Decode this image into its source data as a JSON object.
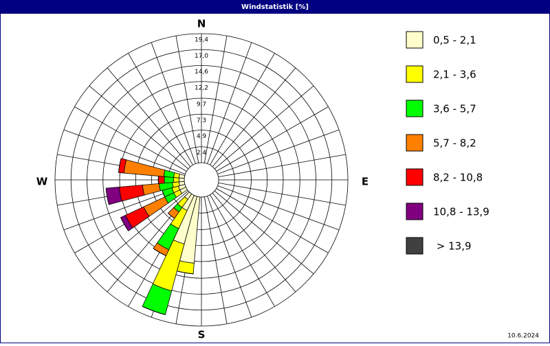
{
  "chart_data": {
    "type": "windrose",
    "title": "Windstatistik [%]",
    "date": "10.6.2024",
    "compass_labels": {
      "north": "N",
      "east": "E",
      "south": "S",
      "west": "W"
    },
    "x": [
      190,
      200,
      210,
      220,
      240,
      250,
      260,
      270,
      280
    ],
    "series": [
      {
        "name": "0,5 - 2,1",
        "color": "#ffffcc",
        "values": [
          10,
          7.4,
          2.5,
          1,
          1,
          1,
          0.8,
          0.8,
          0.8
        ]
      },
      {
        "name": "2,1 - 3,6",
        "color": "#ffff00",
        "values": [
          1.6,
          7.3,
          3,
          1.5,
          1,
          1,
          1,
          0.8,
          0.8
        ]
      },
      {
        "name": "3,6 - 5,7",
        "color": "#00ff00",
        "values": [
          0,
          3.7,
          3.5,
          0.8,
          1.5,
          1.5,
          2,
          1.4,
          1.5
        ]
      },
      {
        "name": "5,7 - 8,2",
        "color": "#ff8000",
        "values": [
          0,
          0,
          1,
          1.2,
          3.5,
          0,
          2.5,
          0,
          6
        ]
      },
      {
        "name": "8,2 - 10,8",
        "color": "#ff0000",
        "values": [
          0,
          0,
          0,
          0,
          3,
          0,
          3.5,
          0.9,
          0.8
        ]
      },
      {
        "name": "10,8 - 13,9",
        "color": "#800080",
        "values": [
          0,
          0,
          0,
          0,
          0.8,
          0,
          2,
          0,
          0
        ]
      },
      {
        "name": " > 13,9",
        "color": "#404040",
        "values": [
          0,
          0,
          0,
          0,
          0,
          0,
          0,
          0,
          0
        ]
      }
    ],
    "rlim": [
      0,
      19.4
    ],
    "rticks": [
      {
        "value": 2.4,
        "label": "2,4"
      },
      {
        "value": 4.9,
        "label": "4,9"
      },
      {
        "value": 7.3,
        "label": "7,3"
      },
      {
        "value": 9.7,
        "label": "9,7"
      },
      {
        "value": 12.2,
        "label": "12,2"
      },
      {
        "value": 14.6,
        "label": "14,6"
      },
      {
        "value": 17.0,
        "label": "17,0"
      },
      {
        "value": 19.4,
        "label": "19,4"
      }
    ],
    "grid": true
  }
}
